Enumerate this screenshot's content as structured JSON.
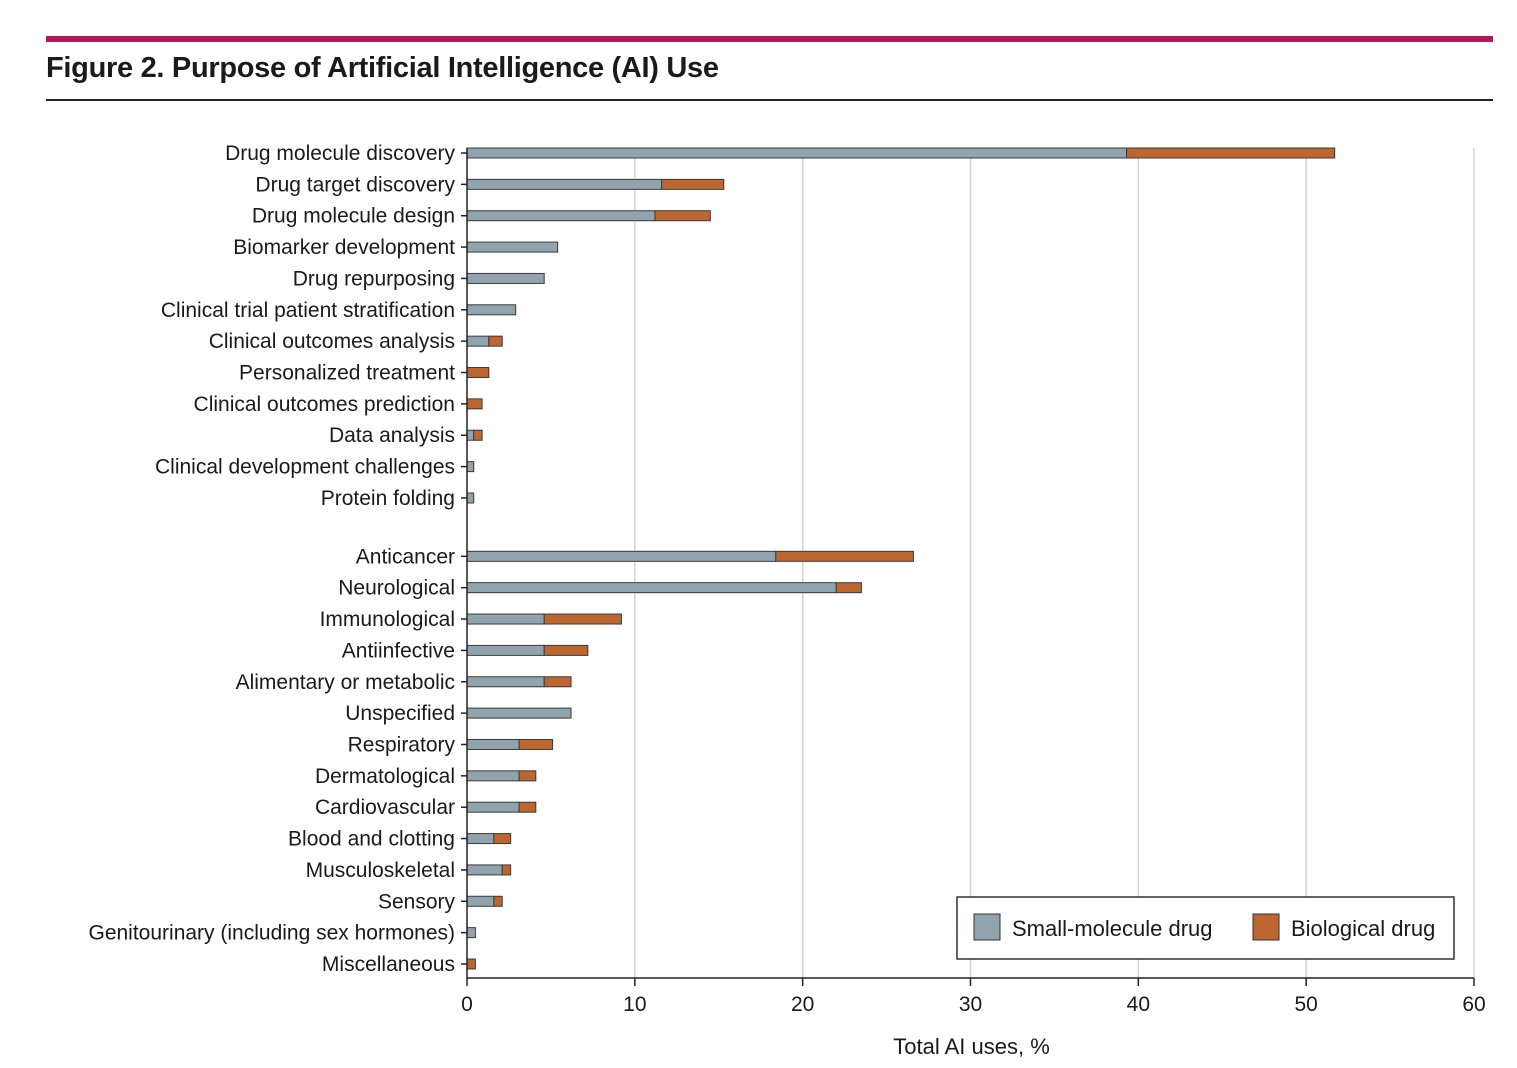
{
  "figure": {
    "title": "Figure 2. Purpose of Artificial Intelligence (AI) Use"
  },
  "colors": {
    "accent_rule": "#b5175e",
    "small_molecule": "#91a4ad",
    "biological": "#bd6630",
    "grid": "#d4d4d4",
    "axis": "#222222"
  },
  "chart_data": {
    "type": "bar",
    "orientation": "horizontal",
    "stacked": true,
    "title": "Figure 2. Purpose of Artificial Intelligence (AI) Use",
    "xlabel": "Total AI uses, %",
    "ylabel": "",
    "xlim": [
      0,
      60
    ],
    "xticks": [
      "0",
      "10",
      "20",
      "30",
      "40",
      "50",
      "60"
    ],
    "grid": "vertical",
    "legend_position": "bottom-right",
    "groups": [
      {
        "categories": [
          "Drug molecule discovery",
          "Drug target discovery",
          "Drug molecule design",
          "Biomarker development",
          "Drug repurposing",
          "Clinical trial patient stratification",
          "Clinical outcomes analysis",
          "Personalized treatment",
          "Clinical outcomes prediction",
          "Data analysis",
          "Clinical development challenges",
          "Protein folding"
        ],
        "series": [
          {
            "name": "Small-molecule drug",
            "values": [
              39.3,
              11.6,
              11.2,
              5.4,
              4.6,
              2.9,
              1.3,
              0,
              0,
              0.4,
              0.4,
              0.4
            ]
          },
          {
            "name": "Biological drug",
            "values": [
              12.4,
              3.7,
              3.3,
              0,
              0,
              0,
              0.8,
              1.3,
              0.9,
              0.5,
              0,
              0
            ]
          }
        ]
      },
      {
        "categories": [
          "Anticancer",
          "Neurological",
          "Immunological",
          "Antiinfective",
          "Alimentary or metabolic",
          "Unspecified",
          "Respiratory",
          "Dermatological",
          "Cardiovascular",
          "Blood and clotting",
          "Musculoskeletal",
          "Sensory",
          "Genitourinary (including sex hormones)",
          "Miscellaneous"
        ],
        "series": [
          {
            "name": "Small-molecule drug",
            "values": [
              18.4,
              22.0,
              4.6,
              4.6,
              4.6,
              6.2,
              3.1,
              3.1,
              3.1,
              1.6,
              2.1,
              1.6,
              0.5,
              0
            ]
          },
          {
            "name": "Biological drug",
            "values": [
              8.2,
              1.5,
              4.6,
              2.6,
              1.6,
              0,
              2.0,
              1.0,
              1.0,
              1.0,
              0.5,
              0.5,
              0,
              0.5
            ]
          }
        ]
      }
    ],
    "legend": [
      {
        "name": "Small-molecule drug",
        "color": "#91a4ad"
      },
      {
        "name": "Biological drug",
        "color": "#bd6630"
      }
    ]
  }
}
